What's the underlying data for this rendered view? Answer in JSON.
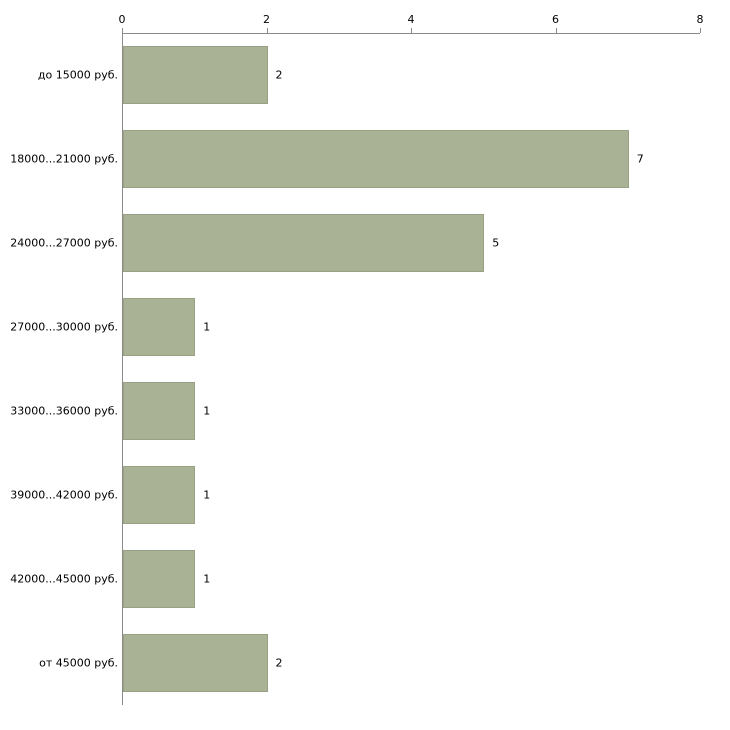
{
  "chart_data": {
    "type": "bar",
    "orientation": "horizontal",
    "title": "",
    "xlabel": "",
    "ylabel": "",
    "categories": [
      "до 15000 руб.",
      "18000...21000 руб.",
      "24000...27000 руб.",
      "27000...30000 руб.",
      "33000...36000 руб.",
      "39000...42000 руб.",
      "42000...45000 руб.",
      "от 45000 руб."
    ],
    "values": [
      2,
      7,
      5,
      1,
      1,
      1,
      1,
      2
    ],
    "xlim": [
      0,
      8
    ],
    "x_ticks": [
      "0",
      "2",
      "4",
      "6",
      "8"
    ],
    "x_tick_values": [
      0,
      2,
      4,
      6,
      8
    ],
    "grid": false,
    "legend": false,
    "bar_color": "#a9b294",
    "bar_border_color": "#98a283",
    "axis_color": "#8a8a8a"
  }
}
